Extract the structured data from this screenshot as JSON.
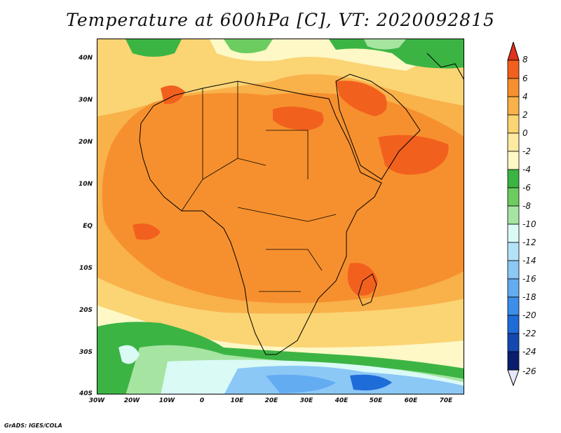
{
  "title": "Temperature at 600hPa [C], VT: 2020092815",
  "credit": "GrADS: IGES/COLA",
  "map": {
    "lat_labels": [
      "40N",
      "30N",
      "20N",
      "10N",
      "EQ",
      "10S",
      "20S",
      "30S",
      "40S"
    ],
    "lon_labels": [
      "30W",
      "20W",
      "10W",
      "0",
      "10E",
      "20E",
      "30E",
      "40E",
      "50E",
      "60E",
      "70E"
    ]
  },
  "colorbar": {
    "labels": [
      "8",
      "6",
      "4",
      "2",
      "0",
      "-2",
      "-4",
      "-6",
      "-8",
      "-10",
      "-12",
      "-14",
      "-16",
      "-18",
      "-20",
      "-22",
      "-24",
      "-26"
    ],
    "colors": [
      "#e0321c",
      "#f2601e",
      "#f6902e",
      "#f9b14a",
      "#fbd474",
      "#fbeaa0",
      "#fdf8c6",
      "#3cb444",
      "#6ccc60",
      "#a6e4a2",
      "#dafaf6",
      "#b4e2f8",
      "#8cc8f6",
      "#64acf2",
      "#3c8ee8",
      "#1e6cd8",
      "#1448b0",
      "#0a1e70",
      "#e8e8fc"
    ],
    "top_color": "#e0321c",
    "bottom_color": "#e8e8fc"
  }
}
